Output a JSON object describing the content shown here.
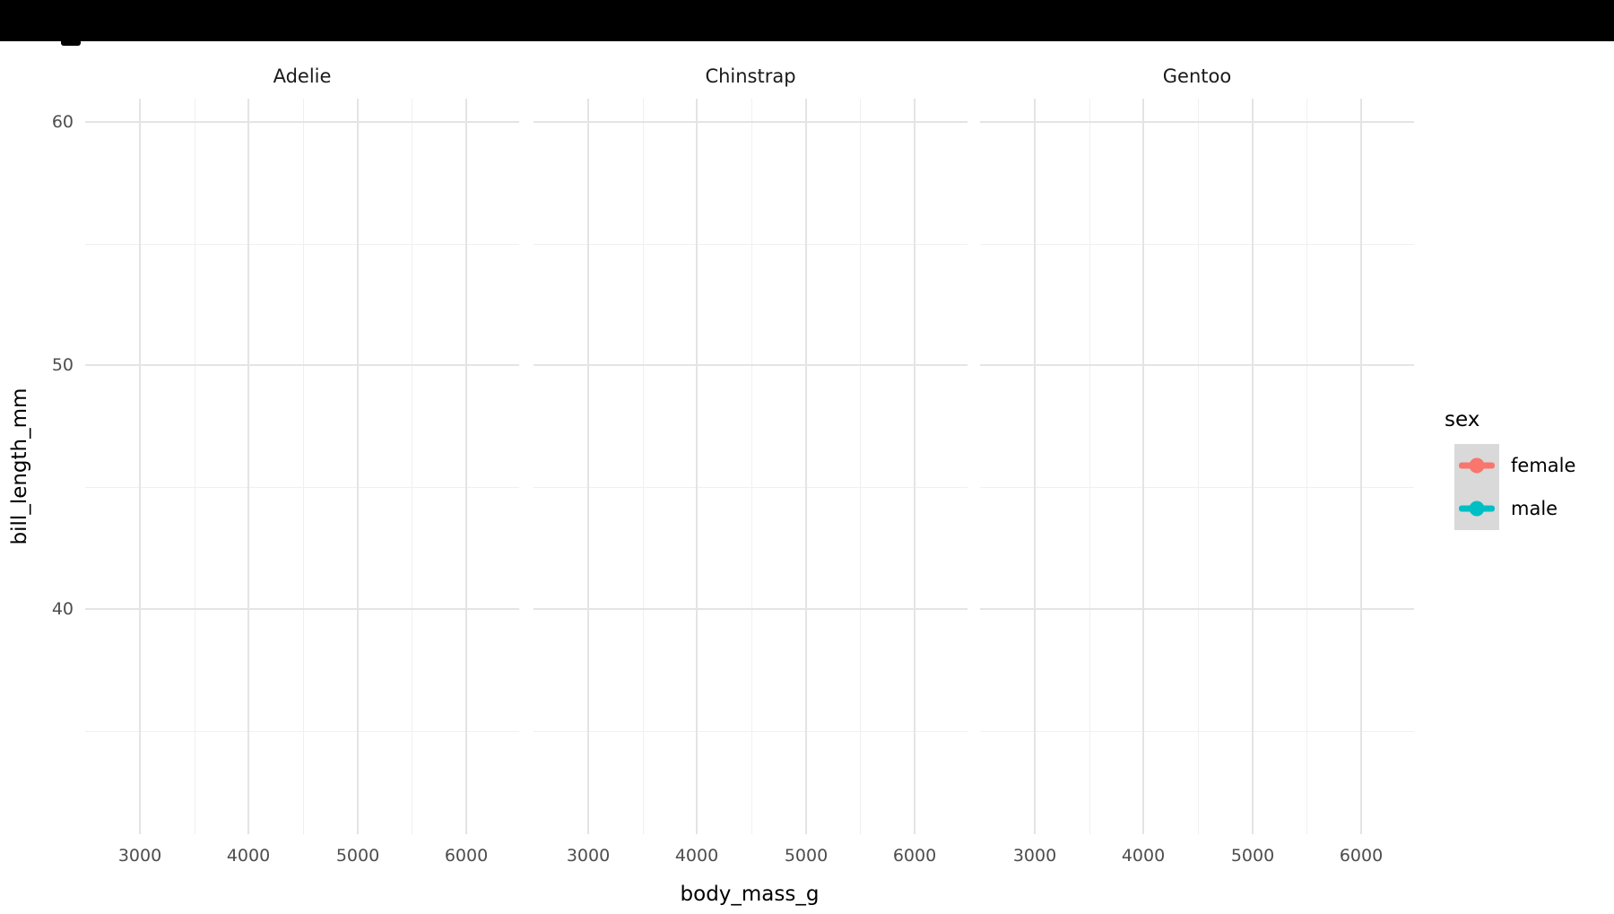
{
  "chart_data": {
    "type": "scatter",
    "subtype": "faceted ggplot-style point/pointrange chart with empty panels (no data points drawn)",
    "title": "",
    "facets": [
      "Adelie",
      "Chinstrap",
      "Gentoo"
    ],
    "xlabel": "body_mass_g",
    "ylabel": "bill_length_mm",
    "x_axis": {
      "major_ticks": [
        3000,
        4000,
        5000,
        6000
      ],
      "major_tick_labels": [
        "3000",
        "4000",
        "5000",
        "6000"
      ],
      "minor_ticks": [
        3500,
        4500,
        5500
      ],
      "range": [
        2497,
        6487
      ]
    },
    "y_axis": {
      "major_ticks": [
        40,
        50,
        60
      ],
      "major_tick_labels": [
        "40",
        "50",
        "60"
      ],
      "minor_ticks": [
        35,
        45,
        55
      ],
      "range": [
        30.75,
        60.96
      ]
    },
    "series": [
      {
        "name": "female",
        "color": "#F8766D",
        "points": []
      },
      {
        "name": "male",
        "color": "#00BFC4",
        "points": []
      }
    ],
    "legend": {
      "title": "sex",
      "position": "right",
      "key_background": "#D9D9D9",
      "entries": [
        {
          "label": "female",
          "color": "#F8766D"
        },
        {
          "label": "male",
          "color": "#00BFC4"
        }
      ]
    },
    "grid": {
      "major_color": "#E4E4E4",
      "minor_color": "#F0F0F0",
      "background": "#FFFFFF",
      "grid_on": true
    },
    "colors": {
      "tick_label": "#4D4D4D",
      "strip_text": "#1A1A1A",
      "axis_title": "#000000",
      "top_bar": "#000000"
    }
  }
}
